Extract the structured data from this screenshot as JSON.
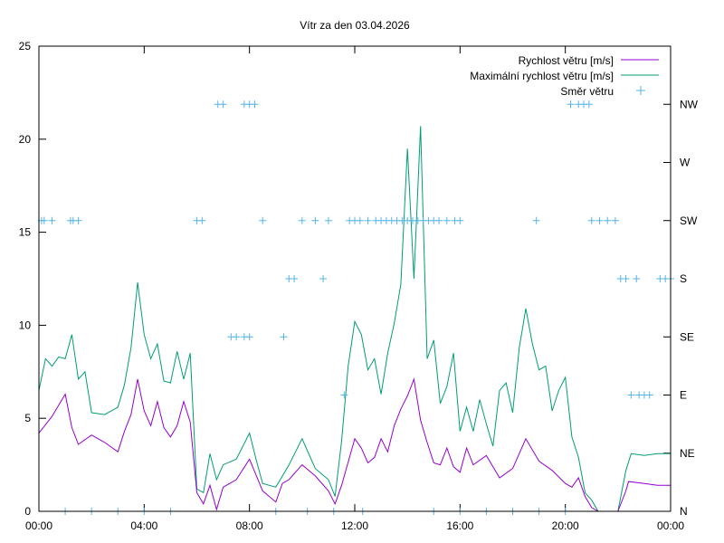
{
  "chart_data": {
    "type": "line",
    "title": "Vítr za den 03.04.2026",
    "x_range_hours": [
      0,
      24
    ],
    "y_left_range": [
      0,
      25
    ],
    "y_left_ticks": [
      "0",
      "5",
      "10",
      "15",
      "20",
      "25"
    ],
    "x_ticks": [
      "00:00",
      "04:00",
      "08:00",
      "12:00",
      "16:00",
      "20:00",
      "00:00"
    ],
    "y_right_ticks": [
      "N",
      "NE",
      "E",
      "SE",
      "S",
      "SW",
      "W",
      "NW"
    ],
    "colors": {
      "speed": "#9400d3",
      "gust": "#009e73",
      "direction": "#56b4e9",
      "axis": "#000000"
    },
    "series": [
      {
        "name": "Rychlost větru [m/s]",
        "kind": "line",
        "points": [
          [
            0.0,
            4.2
          ],
          [
            0.5,
            5.1
          ],
          [
            1.0,
            6.3
          ],
          [
            1.25,
            4.5
          ],
          [
            1.5,
            3.6
          ],
          [
            2.0,
            4.1
          ],
          [
            2.5,
            3.7
          ],
          [
            3.0,
            3.2
          ],
          [
            3.25,
            4.3
          ],
          [
            3.5,
            5.2
          ],
          [
            3.75,
            7.1
          ],
          [
            4.0,
            5.4
          ],
          [
            4.25,
            4.6
          ],
          [
            4.5,
            5.9
          ],
          [
            4.75,
            4.5
          ],
          [
            5.0,
            4.0
          ],
          [
            5.25,
            4.6
          ],
          [
            5.5,
            5.9
          ],
          [
            5.75,
            4.8
          ],
          [
            6.0,
            1.0
          ],
          [
            6.25,
            0.4
          ],
          [
            6.5,
            1.4
          ],
          [
            6.75,
            0.1
          ],
          [
            7.0,
            1.3
          ],
          [
            7.5,
            1.7
          ],
          [
            8.0,
            2.8
          ],
          [
            8.5,
            1.1
          ],
          [
            9.0,
            0.5
          ],
          [
            9.25,
            1.5
          ],
          [
            9.5,
            1.7
          ],
          [
            10.0,
            2.5
          ],
          [
            10.5,
            1.9
          ],
          [
            11.0,
            1.1
          ],
          [
            11.25,
            0.4
          ],
          [
            11.5,
            1.4
          ],
          [
            12.0,
            3.9
          ],
          [
            12.25,
            3.4
          ],
          [
            12.5,
            2.6
          ],
          [
            12.75,
            2.9
          ],
          [
            13.0,
            3.9
          ],
          [
            13.25,
            3.2
          ],
          [
            13.5,
            4.6
          ],
          [
            13.75,
            5.5
          ],
          [
            14.0,
            6.2
          ],
          [
            14.25,
            7.1
          ],
          [
            14.5,
            4.9
          ],
          [
            14.75,
            3.7
          ],
          [
            15.0,
            2.6
          ],
          [
            15.25,
            2.5
          ],
          [
            15.5,
            3.4
          ],
          [
            15.75,
            2.4
          ],
          [
            16.0,
            2.1
          ],
          [
            16.25,
            3.4
          ],
          [
            16.5,
            2.5
          ],
          [
            17.0,
            3.0
          ],
          [
            17.5,
            1.8
          ],
          [
            18.0,
            2.3
          ],
          [
            18.5,
            3.9
          ],
          [
            19.0,
            2.7
          ],
          [
            19.5,
            2.2
          ],
          [
            20.0,
            1.5
          ],
          [
            20.25,
            1.3
          ],
          [
            20.5,
            1.8
          ],
          [
            20.75,
            0.8
          ],
          [
            21.0,
            0.2
          ],
          [
            21.25,
            0.0
          ],
          [
            21.5,
            0.0
          ],
          [
            22.0,
            0.0
          ],
          [
            22.3,
            1.1
          ],
          [
            22.4,
            1.6
          ],
          [
            23.0,
            1.5
          ],
          [
            23.5,
            1.4
          ],
          [
            24.0,
            1.4
          ]
        ]
      },
      {
        "name": "Maximální rychlost větru [m/s]",
        "kind": "line",
        "points": [
          [
            0.0,
            6.5
          ],
          [
            0.25,
            8.2
          ],
          [
            0.5,
            7.8
          ],
          [
            0.75,
            8.3
          ],
          [
            1.0,
            8.2
          ],
          [
            1.25,
            9.5
          ],
          [
            1.5,
            7.1
          ],
          [
            1.75,
            7.5
          ],
          [
            2.0,
            5.3
          ],
          [
            2.5,
            5.2
          ],
          [
            3.0,
            5.6
          ],
          [
            3.25,
            6.8
          ],
          [
            3.5,
            8.8
          ],
          [
            3.75,
            12.3
          ],
          [
            4.0,
            9.5
          ],
          [
            4.25,
            8.2
          ],
          [
            4.5,
            9.0
          ],
          [
            4.75,
            7.0
          ],
          [
            5.0,
            6.9
          ],
          [
            5.25,
            8.6
          ],
          [
            5.5,
            7.1
          ],
          [
            5.75,
            8.5
          ],
          [
            6.0,
            1.2
          ],
          [
            6.25,
            1.0
          ],
          [
            6.5,
            3.1
          ],
          [
            6.75,
            1.7
          ],
          [
            7.0,
            2.5
          ],
          [
            7.5,
            2.8
          ],
          [
            8.0,
            4.2
          ],
          [
            8.25,
            2.8
          ],
          [
            8.5,
            1.5
          ],
          [
            9.0,
            1.3
          ],
          [
            9.5,
            2.5
          ],
          [
            9.75,
            3.2
          ],
          [
            10.0,
            3.9
          ],
          [
            10.5,
            2.3
          ],
          [
            11.0,
            1.7
          ],
          [
            11.25,
            0.8
          ],
          [
            11.5,
            3.8
          ],
          [
            11.75,
            7.8
          ],
          [
            12.0,
            10.2
          ],
          [
            12.25,
            9.5
          ],
          [
            12.5,
            7.6
          ],
          [
            12.75,
            8.2
          ],
          [
            13.0,
            6.3
          ],
          [
            13.25,
            8.5
          ],
          [
            13.5,
            10.1
          ],
          [
            13.75,
            12.2
          ],
          [
            14.0,
            19.5
          ],
          [
            14.25,
            12.5
          ],
          [
            14.5,
            20.7
          ],
          [
            14.75,
            8.2
          ],
          [
            15.0,
            9.2
          ],
          [
            15.25,
            5.8
          ],
          [
            15.5,
            6.7
          ],
          [
            15.75,
            8.5
          ],
          [
            16.0,
            4.3
          ],
          [
            16.25,
            5.6
          ],
          [
            16.5,
            4.3
          ],
          [
            16.75,
            6.0
          ],
          [
            17.0,
            4.7
          ],
          [
            17.25,
            3.5
          ],
          [
            17.5,
            6.5
          ],
          [
            17.75,
            6.9
          ],
          [
            18.0,
            5.3
          ],
          [
            18.25,
            8.8
          ],
          [
            18.5,
            10.9
          ],
          [
            18.75,
            9.0
          ],
          [
            19.0,
            7.6
          ],
          [
            19.25,
            7.8
          ],
          [
            19.5,
            5.4
          ],
          [
            19.75,
            6.5
          ],
          [
            20.0,
            7.2
          ],
          [
            20.25,
            4.0
          ],
          [
            20.5,
            2.9
          ],
          [
            20.75,
            1.0
          ],
          [
            21.0,
            0.6
          ],
          [
            21.25,
            0.0
          ],
          [
            22.0,
            0.0
          ],
          [
            22.3,
            2.2
          ],
          [
            22.5,
            3.1
          ],
          [
            23.0,
            3.0
          ],
          [
            23.5,
            3.1
          ],
          [
            24.0,
            3.1
          ]
        ]
      },
      {
        "name": "Směr větru",
        "kind": "points",
        "points": [
          [
            0.1,
            5
          ],
          [
            0.2,
            5
          ],
          [
            0.5,
            5
          ],
          [
            1.2,
            5
          ],
          [
            1.3,
            5
          ],
          [
            1.5,
            5
          ],
          [
            1.0,
            0
          ],
          [
            2.0,
            0
          ],
          [
            3.0,
            0
          ],
          [
            4.0,
            0
          ],
          [
            5.0,
            0
          ],
          [
            6.0,
            5
          ],
          [
            6.2,
            5
          ],
          [
            6.8,
            7
          ],
          [
            7.0,
            7
          ],
          [
            7.8,
            7
          ],
          [
            8.0,
            7
          ],
          [
            8.2,
            7
          ],
          [
            7.3,
            3
          ],
          [
            7.5,
            3
          ],
          [
            7.8,
            3
          ],
          [
            8.0,
            3
          ],
          [
            8.5,
            5
          ],
          [
            9.3,
            3
          ],
          [
            9.5,
            4
          ],
          [
            9.7,
            4
          ],
          [
            10.0,
            5
          ],
          [
            10.5,
            5
          ],
          [
            10.8,
            4
          ],
          [
            11.0,
            5
          ],
          [
            11.6,
            2
          ],
          [
            11.8,
            5
          ],
          [
            12.0,
            5
          ],
          [
            12.2,
            5
          ],
          [
            12.5,
            5
          ],
          [
            12.8,
            5
          ],
          [
            13.0,
            5
          ],
          [
            13.2,
            5
          ],
          [
            13.4,
            5
          ],
          [
            13.6,
            5
          ],
          [
            13.8,
            5
          ],
          [
            14.0,
            5
          ],
          [
            14.2,
            5
          ],
          [
            14.4,
            5
          ],
          [
            14.6,
            5
          ],
          [
            14.8,
            5
          ],
          [
            15.0,
            5
          ],
          [
            15.2,
            5
          ],
          [
            15.5,
            5
          ],
          [
            15.8,
            5
          ],
          [
            16.0,
            5
          ],
          [
            9.0,
            0
          ],
          [
            10.2,
            0
          ],
          [
            11.2,
            0
          ],
          [
            12.3,
            0
          ],
          [
            15.0,
            0
          ],
          [
            16.0,
            0
          ],
          [
            17.0,
            0
          ],
          [
            18.0,
            0
          ],
          [
            19.0,
            0
          ],
          [
            20.0,
            0
          ],
          [
            18.9,
            5
          ],
          [
            20.2,
            7
          ],
          [
            20.5,
            7
          ],
          [
            20.7,
            7
          ],
          [
            20.9,
            7
          ],
          [
            21.0,
            5
          ],
          [
            21.3,
            5
          ],
          [
            21.6,
            5
          ],
          [
            21.9,
            5
          ],
          [
            22.1,
            4
          ],
          [
            22.3,
            4
          ],
          [
            22.7,
            4
          ],
          [
            22.5,
            2
          ],
          [
            22.8,
            2
          ],
          [
            23.0,
            2
          ],
          [
            23.2,
            2
          ],
          [
            23.6,
            4
          ],
          [
            23.8,
            4
          ],
          [
            24.0,
            4
          ]
        ]
      }
    ]
  }
}
